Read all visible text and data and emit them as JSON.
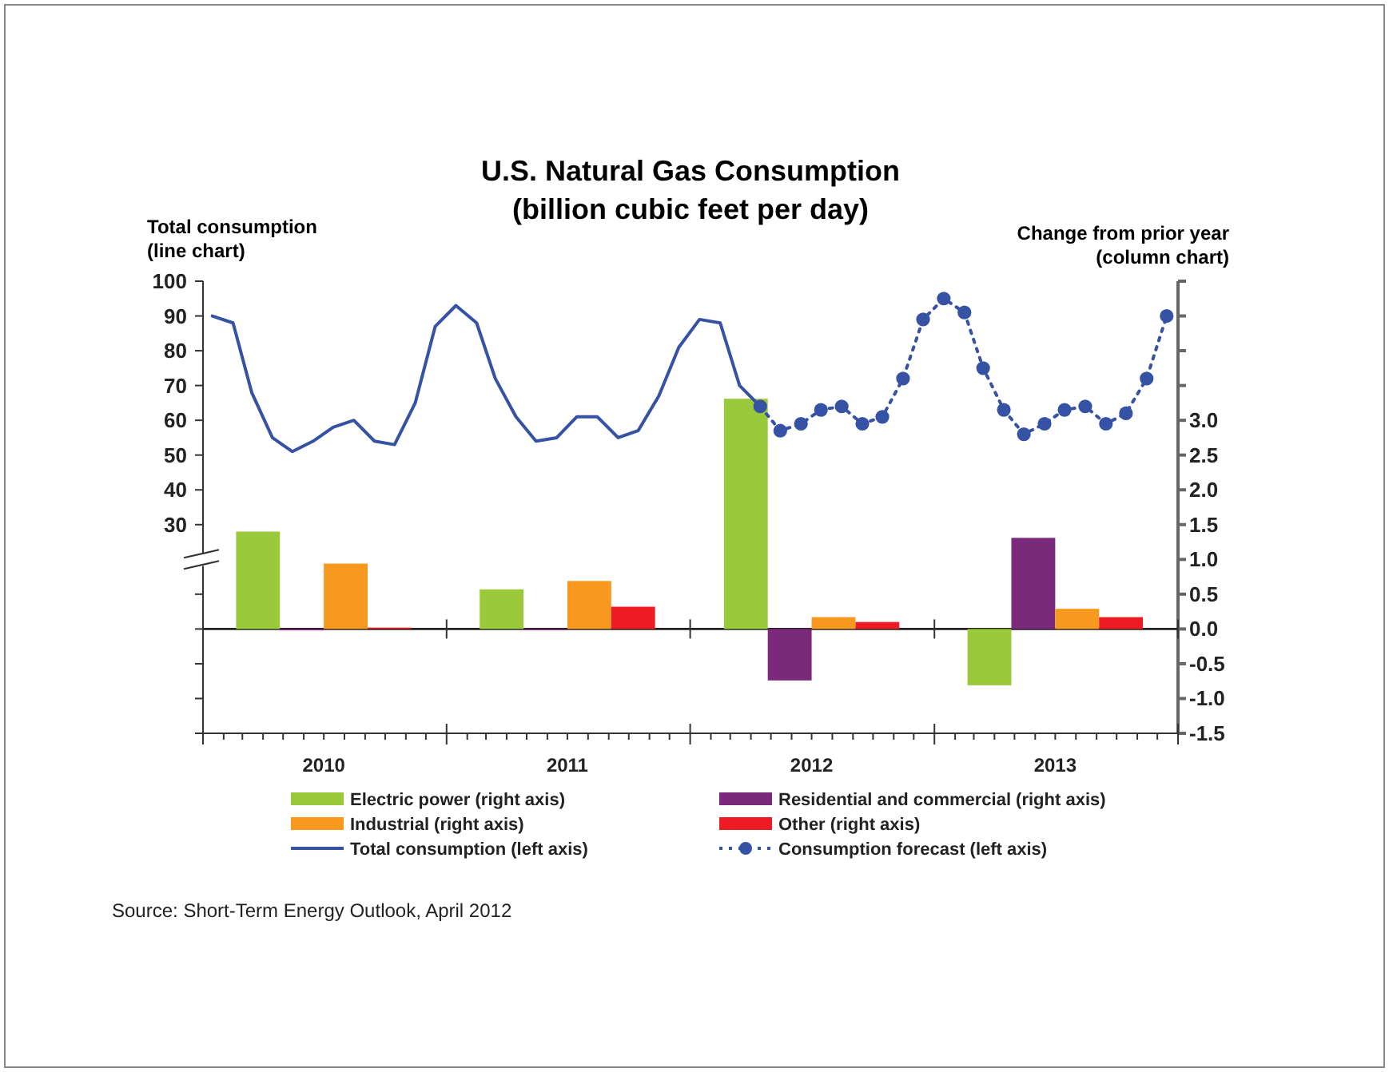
{
  "chart_data": {
    "type": "bar",
    "title": "U.S. Natural Gas Consumption",
    "subtitle": "(billion cubic feet per day)",
    "ylabel": "Total consumption\n(line chart)",
    "y2label": "Change from prior year\n(column chart)",
    "annotations": [
      "Source: Short-Term Energy Outlook, April 2012"
    ],
    "xlim": [
      "2010-01-01",
      "2014-01-01"
    ],
    "xticks": [
      {
        "value": "2010-01-01",
        "label": null
      },
      {
        "value": "2010-02-01",
        "label": null
      },
      {
        "value": "2010-03-01",
        "label": null
      },
      {
        "value": "2010-04-01",
        "label": null
      },
      {
        "value": "2010-05-01",
        "label": null
      },
      {
        "value": "2010-06-01",
        "label": null
      },
      {
        "value": "2010-07-01",
        "label": "2010"
      },
      {
        "value": "2010-08-01",
        "label": null
      },
      {
        "value": "2010-09-01",
        "label": null
      },
      {
        "value": "2010-10-01",
        "label": null
      },
      {
        "value": "2010-11-01",
        "label": null
      },
      {
        "value": "2010-12-01",
        "label": null
      },
      {
        "value": "2011-01-01",
        "label": null
      },
      {
        "value": "2011-02-01",
        "label": null
      },
      {
        "value": "2011-03-01",
        "label": null
      },
      {
        "value": "2011-04-01",
        "label": null
      },
      {
        "value": "2011-05-01",
        "label": null
      },
      {
        "value": "2011-06-01",
        "label": null
      },
      {
        "value": "2011-07-01",
        "label": "2011"
      },
      {
        "value": "2011-08-01",
        "label": null
      },
      {
        "value": "2011-09-01",
        "label": null
      },
      {
        "value": "2011-10-01",
        "label": null
      },
      {
        "value": "2011-11-01",
        "label": null
      },
      {
        "value": "2011-12-01",
        "label": null
      },
      {
        "value": "2012-01-01",
        "label": null
      },
      {
        "value": "2012-02-01",
        "label": null
      },
      {
        "value": "2012-03-01",
        "label": null
      },
      {
        "value": "2012-04-01",
        "label": null
      },
      {
        "value": "2012-05-01",
        "label": null
      },
      {
        "value": "2012-06-01",
        "label": null
      },
      {
        "value": "2012-07-01",
        "label": "2012"
      },
      {
        "value": "2012-08-01",
        "label": null
      },
      {
        "value": "2012-09-01",
        "label": null
      },
      {
        "value": "2012-10-01",
        "label": null
      },
      {
        "value": "2012-11-01",
        "label": null
      },
      {
        "value": "2012-12-01",
        "label": null
      },
      {
        "value": "2013-01-01",
        "label": null
      },
      {
        "value": "2013-02-01",
        "label": null
      },
      {
        "value": "2013-03-01",
        "label": null
      },
      {
        "value": "2013-04-01",
        "label": null
      },
      {
        "value": "2013-05-01",
        "label": null
      },
      {
        "value": "2013-06-01",
        "label": null
      },
      {
        "value": "2013-07-01",
        "label": "2013"
      },
      {
        "value": "2013-08-01",
        "label": null
      },
      {
        "value": "2013-09-01",
        "label": null
      },
      {
        "value": "2013-10-01",
        "label": null
      },
      {
        "value": "2013-11-01",
        "label": null
      },
      {
        "value": "2013-12-01",
        "label": null
      },
      {
        "value": "2014-01-01",
        "label": null
      }
    ],
    "ylim": [
      -30,
      100
    ],
    "yticks": [
      {
        "value": -30,
        "label": null
      },
      {
        "value": -20,
        "label": null
      },
      {
        "value": -10,
        "label": null
      },
      {
        "value": 0,
        "label": null
      },
      {
        "value": 10,
        "label": null
      },
      30,
      40,
      50,
      60,
      70,
      80,
      90,
      100
    ],
    "y2lim": [
      -1.5,
      5
    ],
    "y2ticks": [
      -1.5,
      {
        "value": -1,
        "label": "-1.0"
      },
      -0.5,
      {
        "value": 0,
        "label": "0.0"
      },
      0.5,
      {
        "value": 1,
        "label": "1.0"
      },
      1.5,
      {
        "value": 2,
        "label": "2.0"
      },
      2.5,
      {
        "value": 3,
        "label": "3.0"
      },
      {
        "value": 3.5,
        "label": null
      },
      {
        "value": 4,
        "label": null
      },
      {
        "value": 4.5,
        "label": null
      },
      {
        "value": 5,
        "label": null
      }
    ],
    "legend": "bottom",
    "series": [
      {
        "name": "Electric power (right axis)",
        "axis": "y2",
        "color": "#9bc93c",
        "x": [
          "2010-07-01",
          "2011-07-01",
          "2012-07-01",
          "2013-07-01"
        ],
        "values": [
          1.4,
          0.57,
          3.31,
          -0.81
        ]
      },
      {
        "name": "Residential and commercial (right axis)",
        "axis": "y2",
        "color": "#7b2a7b",
        "x": [
          "2010-07-01",
          "2011-07-01",
          "2012-07-01",
          "2013-07-01"
        ],
        "values": [
          -0.02,
          0,
          -0.74,
          1.31
        ]
      },
      {
        "name": "Industrial (right axis)",
        "axis": "y2",
        "color": "#f7991f",
        "x": [
          "2010-07-01",
          "2011-07-01",
          "2012-07-01",
          "2013-07-01"
        ],
        "values": [
          0.94,
          0.69,
          0.17,
          0.29
        ]
      },
      {
        "name": "Other (right axis)",
        "axis": "y2",
        "color": "#ed1c24",
        "x": [
          "2010-07-01",
          "2011-07-01",
          "2012-07-01",
          "2013-07-01"
        ],
        "values": [
          0.02,
          0.32,
          0.1,
          0.17
        ]
      },
      {
        "name": "Total consumption (left axis)",
        "type": "line",
        "color": "#3552a5",
        "marker": "none",
        "line_style": "solid",
        "x": [
          "2010-01-15",
          "2010-02-15",
          "2010-03-15",
          "2010-04-15",
          "2010-05-15",
          "2010-06-15",
          "2010-07-15",
          "2010-08-15",
          "2010-09-15",
          "2010-10-15",
          "2010-11-15",
          "2010-12-15",
          "2011-01-15",
          "2011-02-15",
          "2011-03-15",
          "2011-04-15",
          "2011-05-15",
          "2011-06-15",
          "2011-07-15",
          "2011-08-15",
          "2011-09-15",
          "2011-10-15",
          "2011-11-15",
          "2011-12-15",
          "2012-01-15",
          "2012-02-15",
          "2012-03-15",
          "2012-04-15"
        ],
        "values": [
          90,
          88,
          68,
          55,
          51,
          54,
          58,
          60,
          54,
          53,
          65,
          87,
          93,
          88,
          72,
          61,
          54,
          55,
          61,
          61,
          55,
          57,
          67,
          81,
          89,
          88,
          70,
          64
        ]
      },
      {
        "name": "Consumption forecast (left axis)",
        "type": "line",
        "color": "#3552a5",
        "marker": "circle",
        "line_style": "dotted",
        "x": [
          "2012-04-15",
          "2012-05-15",
          "2012-06-15",
          "2012-07-15",
          "2012-08-15",
          "2012-09-15",
          "2012-10-15",
          "2012-11-15",
          "2012-12-15",
          "2013-01-15",
          "2013-02-15",
          "2013-03-15",
          "2013-04-15",
          "2013-05-15",
          "2013-06-15",
          "2013-07-15",
          "2013-08-15",
          "2013-09-15",
          "2013-10-15",
          "2013-11-15",
          "2013-12-15"
        ],
        "values": [
          64,
          57,
          59,
          63,
          64,
          59,
          61,
          72,
          89,
          95,
          91,
          75,
          63,
          56,
          59,
          63,
          64,
          59,
          62,
          72,
          90
        ]
      }
    ]
  }
}
